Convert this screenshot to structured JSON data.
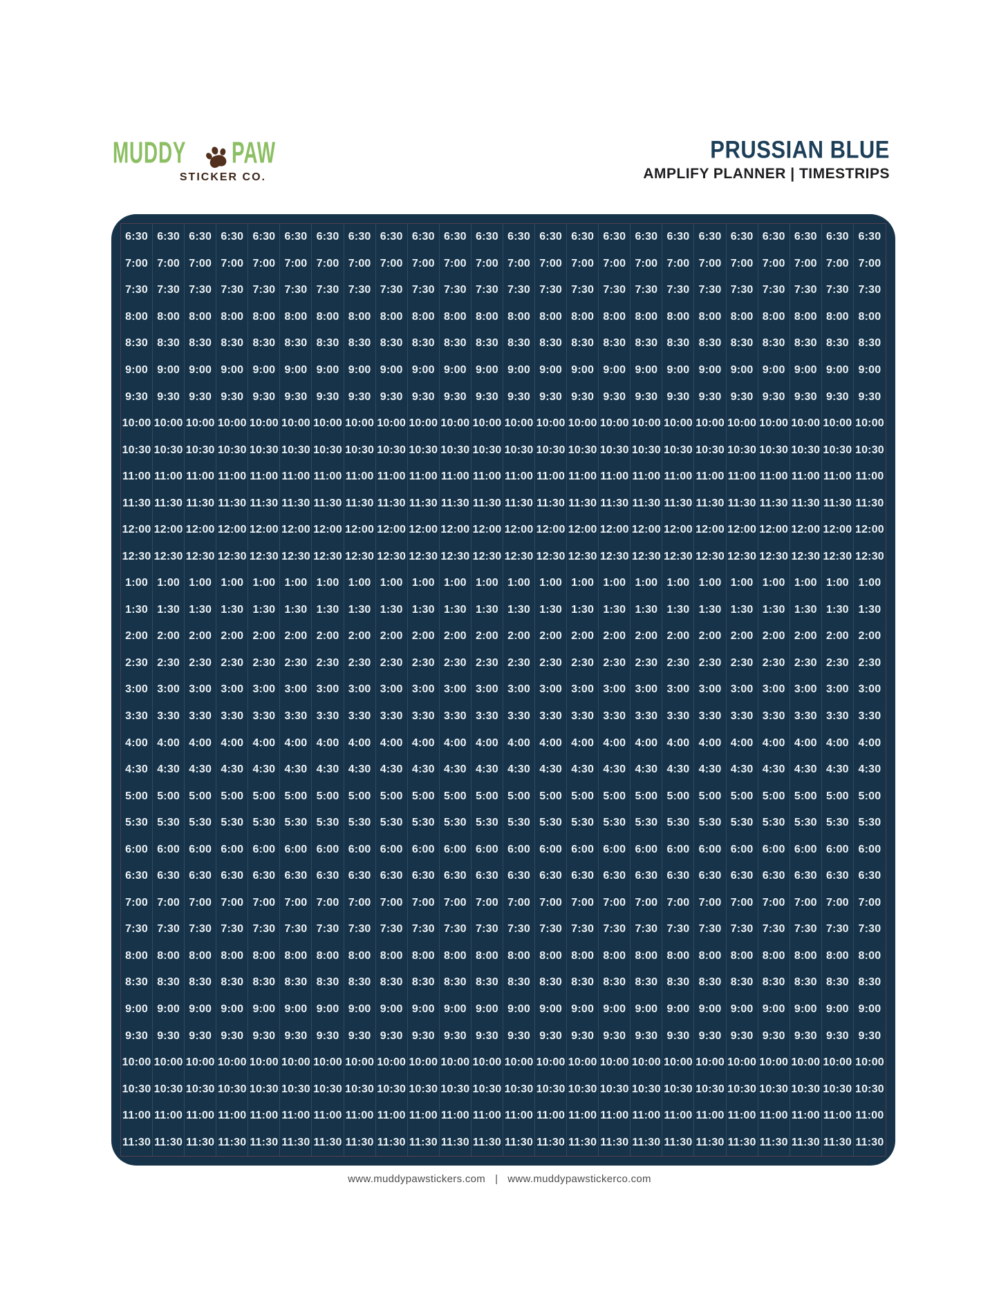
{
  "brand": {
    "name_part1": "MUDDY",
    "name_part2": "PAW",
    "subtitle": "STICKER CO.",
    "colors": {
      "green": "#8CBE63",
      "paw_brown": "#53301E",
      "subtitle_brown": "#3A2417"
    }
  },
  "product": {
    "title": "PRUSSIAN BLUE",
    "subtitle": "AMPLIFY PLANNER | TIMESTRIPS",
    "title_color": "#1C3E58"
  },
  "sheet": {
    "columns": 24,
    "rows": 35,
    "times": [
      "6:30",
      "7:00",
      "7:30",
      "8:00",
      "8:30",
      "9:00",
      "9:30",
      "10:00",
      "10:30",
      "11:00",
      "11:30",
      "12:00",
      "12:30",
      "1:00",
      "1:30",
      "2:00",
      "2:30",
      "3:00",
      "3:30",
      "4:00",
      "4:30",
      "5:00",
      "5:30",
      "6:00",
      "6:30",
      "7:00",
      "7:30",
      "8:00",
      "8:30",
      "9:00",
      "9:30",
      "10:00",
      "10:30",
      "11:00",
      "11:30"
    ],
    "colors": {
      "background": "#163349",
      "time_text": "#EEF3F6",
      "column_cut_line": "#5A7186",
      "border_cut_line": "#9A4A56"
    }
  },
  "footer": {
    "url_left": "www.muddypawstickers.com",
    "separator": "|",
    "url_right": "www.muddypawstickerco.com"
  }
}
